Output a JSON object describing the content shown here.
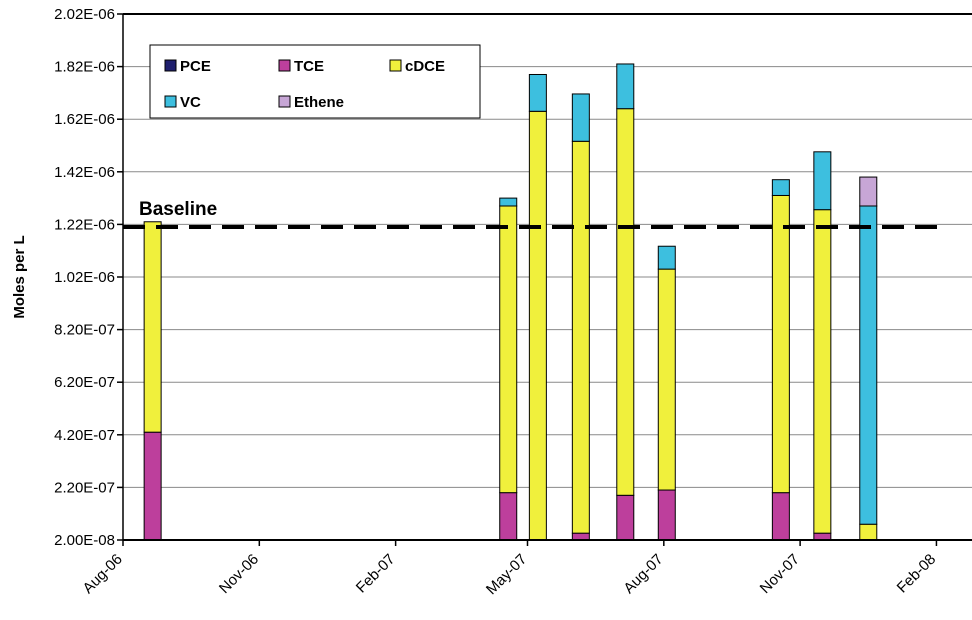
{
  "chart_data": {
    "type": "bar",
    "stacked": true,
    "title": "",
    "xlabel": "",
    "ylabel": "Moles per L",
    "ylim": [
      2e-08,
      2.02e-06
    ],
    "y_ticks": [
      2e-08,
      2.2e-07,
      4.2e-07,
      6.2e-07,
      8.2e-07,
      1.02e-06,
      1.22e-06,
      1.42e-06,
      1.62e-06,
      1.82e-06,
      2.02e-06
    ],
    "y_tick_labels": [
      "2.00E-08",
      "2.20E-07",
      "4.20E-07",
      "6.20E-07",
      "8.20E-07",
      "1.02E-06",
      "1.22E-06",
      "1.42E-06",
      "1.62E-06",
      "1.82E-06",
      "2.02E-06"
    ],
    "xlim": [
      "2006-08-01",
      "2008-02-25"
    ],
    "x_ticks": [
      "2006-08-01",
      "2006-11-01",
      "2007-02-01",
      "2007-05-01",
      "2007-08-01",
      "2007-11-01",
      "2008-02-01"
    ],
    "x_tick_labels": [
      "Aug-06",
      "Nov-06",
      "Feb-07",
      "May-07",
      "Aug-07",
      "Nov-07",
      "Feb-08"
    ],
    "grid": true,
    "legend_position": "top-left",
    "series": [
      {
        "name": "PCE",
        "color": "#1f1f6e",
        "values": [
          0,
          0,
          0,
          0,
          0,
          0,
          0,
          0,
          0
        ]
      },
      {
        "name": "TCE",
        "color": "#bd3f9c",
        "values": [
          4.1e-07,
          1.8e-07,
          0,
          2.6e-08,
          1.7e-07,
          1.9e-07,
          1.8e-07,
          2.6e-08,
          0
        ]
      },
      {
        "name": "cDCE",
        "color": "#f0f03c",
        "values": [
          8e-07,
          1.09e-06,
          1.63e-06,
          1.49e-06,
          1.47e-06,
          8.4e-07,
          1.13e-06,
          1.23e-06,
          6e-08
        ]
      },
      {
        "name": "VC",
        "color": "#3dbfdf",
        "values": [
          0,
          3e-08,
          1.4e-07,
          1.8e-07,
          1.7e-07,
          8.7e-08,
          6e-08,
          2.2e-07,
          1.21e-06
        ]
      },
      {
        "name": "Ethene",
        "color": "#c7a6d6",
        "values": [
          0,
          0,
          0,
          0,
          0,
          0,
          0,
          0,
          1.1e-07
        ]
      }
    ],
    "dates": [
      "2006-08-21",
      "2007-04-18",
      "2007-05-08",
      "2007-06-06",
      "2007-07-06",
      "2007-08-03",
      "2007-10-19",
      "2007-11-16",
      "2007-12-17"
    ],
    "baseline": {
      "label": "Baseline",
      "value": 1.21e-06
    }
  }
}
